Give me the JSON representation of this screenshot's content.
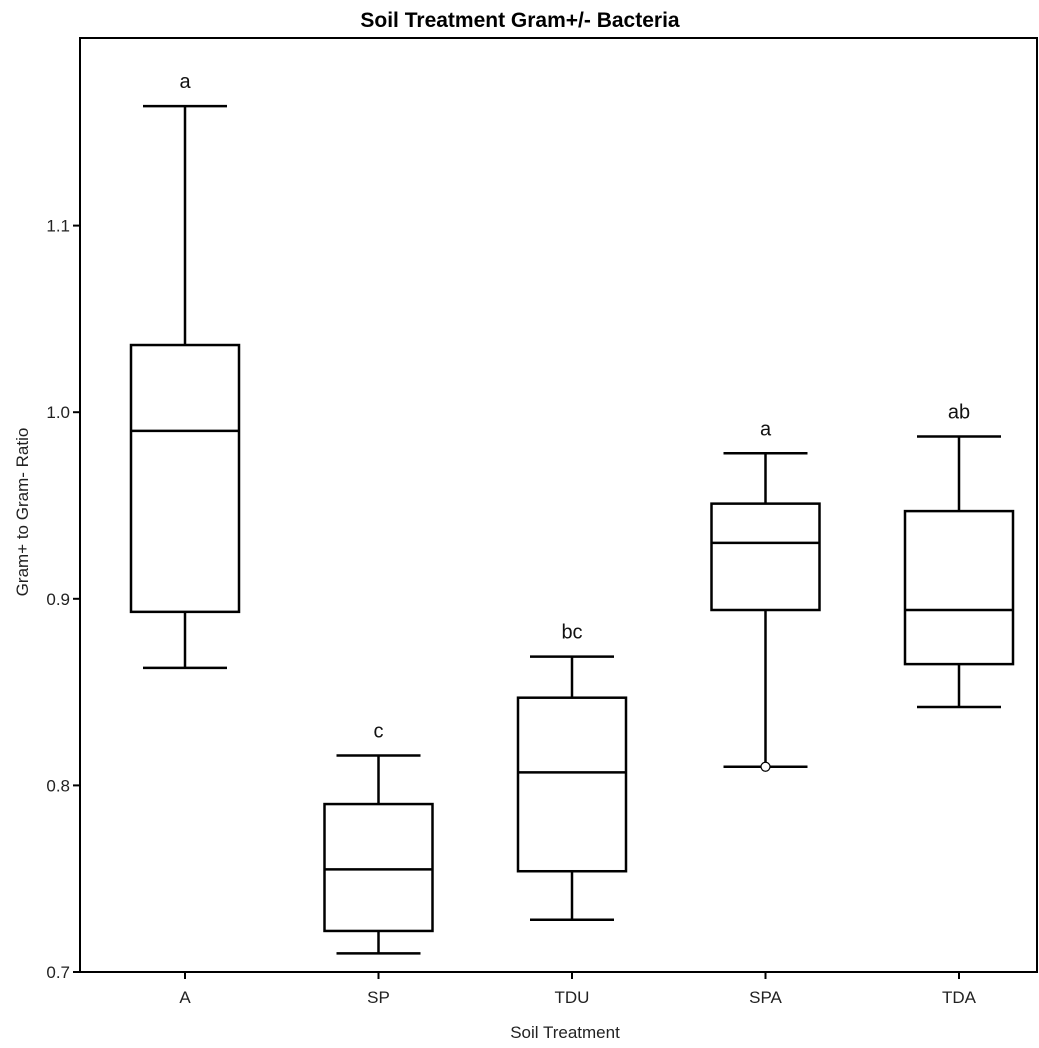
{
  "chart_data": {
    "type": "box",
    "title": "Soil Treatment Gram+/- Bacteria",
    "xlabel": "Soil Treatment",
    "ylabel": "Gram+ to Gram- Ratio",
    "ylim": [
      0.7,
      1.2
    ],
    "yticks": [
      "0.7",
      "0.8",
      "0.9",
      "1.0",
      "1.1"
    ],
    "grid": false,
    "categories": [
      "A",
      "SP",
      "TDU",
      "SPA",
      "TDA"
    ],
    "boxes": [
      {
        "label": "A",
        "whisker_low": 0.863,
        "q1": 0.893,
        "median": 0.99,
        "q3": 1.036,
        "whisker_high": 1.164,
        "group": "a",
        "outliers": []
      },
      {
        "label": "SP",
        "whisker_low": 0.71,
        "q1": 0.722,
        "median": 0.755,
        "q3": 0.79,
        "whisker_high": 0.816,
        "group": "c",
        "outliers": []
      },
      {
        "label": "TDU",
        "whisker_low": 0.728,
        "q1": 0.754,
        "median": 0.807,
        "q3": 0.847,
        "whisker_high": 0.869,
        "group": "bc",
        "outliers": []
      },
      {
        "label": "SPA",
        "whisker_low": 0.81,
        "q1": 0.894,
        "median": 0.93,
        "q3": 0.951,
        "whisker_high": 0.978,
        "group": "a",
        "outliers": [
          0.81
        ]
      },
      {
        "label": "TDA",
        "whisker_low": 0.842,
        "q1": 0.865,
        "median": 0.894,
        "q3": 0.947,
        "whisker_high": 0.987,
        "group": "ab",
        "outliers": []
      }
    ]
  }
}
